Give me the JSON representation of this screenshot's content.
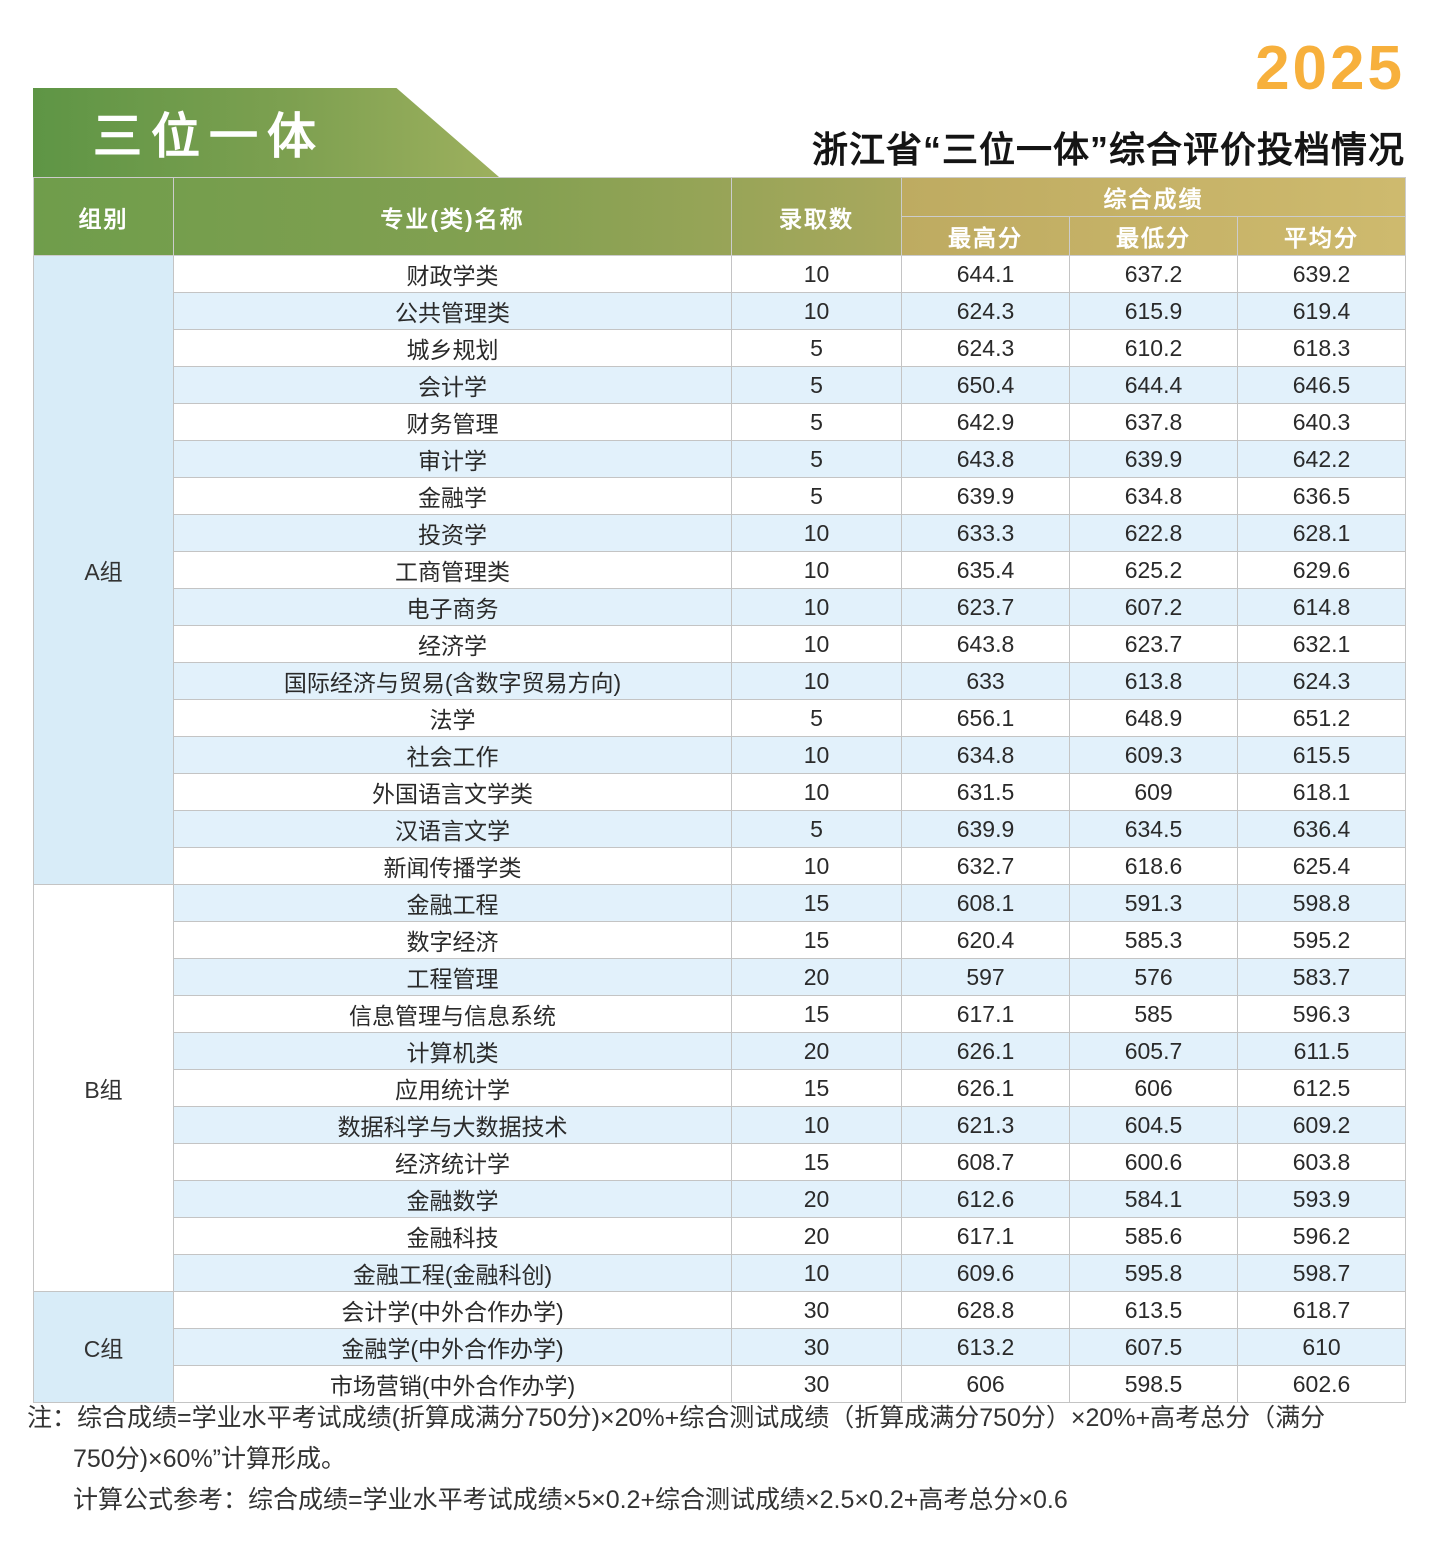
{
  "year_badge": "2025",
  "banner_label": "三位一体",
  "page_title": "浙江省“三位一体”综合评价投档情况",
  "chart_data": {
    "type": "table",
    "title": "浙江省“三位一体”综合评价投档情况",
    "year": "2025",
    "score_group_header": "综合成绩",
    "columns": [
      "组别",
      "专业(类)名称",
      "录取数",
      "最高分",
      "最低分",
      "平均分"
    ],
    "groups": [
      {
        "name": "A组",
        "rows": [
          [
            "财政学类",
            "10",
            "644.1",
            "637.2",
            "639.2"
          ],
          [
            "公共管理类",
            "10",
            "624.3",
            "615.9",
            "619.4"
          ],
          [
            "城乡规划",
            "5",
            "624.3",
            "610.2",
            "618.3"
          ],
          [
            "会计学",
            "5",
            "650.4",
            "644.4",
            "646.5"
          ],
          [
            "财务管理",
            "5",
            "642.9",
            "637.8",
            "640.3"
          ],
          [
            "审计学",
            "5",
            "643.8",
            "639.9",
            "642.2"
          ],
          [
            "金融学",
            "5",
            "639.9",
            "634.8",
            "636.5"
          ],
          [
            "投资学",
            "10",
            "633.3",
            "622.8",
            "628.1"
          ],
          [
            "工商管理类",
            "10",
            "635.4",
            "625.2",
            "629.6"
          ],
          [
            "电子商务",
            "10",
            "623.7",
            "607.2",
            "614.8"
          ],
          [
            "经济学",
            "10",
            "643.8",
            "623.7",
            "632.1"
          ],
          [
            "国际经济与贸易(含数字贸易方向)",
            "10",
            "633",
            "613.8",
            "624.3"
          ],
          [
            "法学",
            "5",
            "656.1",
            "648.9",
            "651.2"
          ],
          [
            "社会工作",
            "10",
            "634.8",
            "609.3",
            "615.5"
          ],
          [
            "外国语言文学类",
            "10",
            "631.5",
            "609",
            "618.1"
          ],
          [
            "汉语言文学",
            "5",
            "639.9",
            "634.5",
            "636.4"
          ],
          [
            "新闻传播学类",
            "10",
            "632.7",
            "618.6",
            "625.4"
          ]
        ]
      },
      {
        "name": "B组",
        "rows": [
          [
            "金融工程",
            "15",
            "608.1",
            "591.3",
            "598.8"
          ],
          [
            "数字经济",
            "15",
            "620.4",
            "585.3",
            "595.2"
          ],
          [
            "工程管理",
            "20",
            "597",
            "576",
            "583.7"
          ],
          [
            "信息管理与信息系统",
            "15",
            "617.1",
            "585",
            "596.3"
          ],
          [
            "计算机类",
            "20",
            "626.1",
            "605.7",
            "611.5"
          ],
          [
            "应用统计学",
            "15",
            "626.1",
            "606",
            "612.5"
          ],
          [
            "数据科学与大数据技术",
            "10",
            "621.3",
            "604.5",
            "609.2"
          ],
          [
            "经济统计学",
            "15",
            "608.7",
            "600.6",
            "603.8"
          ],
          [
            "金融数学",
            "20",
            "612.6",
            "584.1",
            "593.9"
          ],
          [
            "金融科技",
            "20",
            "617.1",
            "585.6",
            "596.2"
          ],
          [
            "金融工程(金融科创)",
            "10",
            "609.6",
            "595.8",
            "598.7"
          ]
        ]
      },
      {
        "name": "C组",
        "rows": [
          [
            "会计学(中外合作办学)",
            "30",
            "628.8",
            "613.5",
            "618.7"
          ],
          [
            "金融学(中外合作办学)",
            "30",
            "613.2",
            "607.5",
            "610"
          ],
          [
            "市场营销(中外合作办学)",
            "30",
            "606",
            "598.5",
            "602.6"
          ]
        ]
      }
    ]
  },
  "notes": {
    "lines": [
      "注：综合成绩=学业水平考试成绩(折算成满分750分)×20%+综合测试成绩（折算成满分750分）×20%+高考总分（满分",
      "750分)×60%”计算形成。",
      "计算公式参考：综合成绩=学业水平考试成绩×5×0.2+综合测试成绩×2.5×0.2+高考总分×0.6"
    ]
  },
  "colors": {
    "accent_orange": "#F7B03C",
    "header_green": "#6F9D4B",
    "header_olive": "#A9A85D",
    "header_gold": "#CEBA6E",
    "banner_green_left": "#5E9545",
    "banner_green_right": "#9DB05E",
    "stripe_blue": "#E2F1FB",
    "group_cell_blue": "#D8ECF8",
    "border_gray": "#C4C4C4"
  }
}
